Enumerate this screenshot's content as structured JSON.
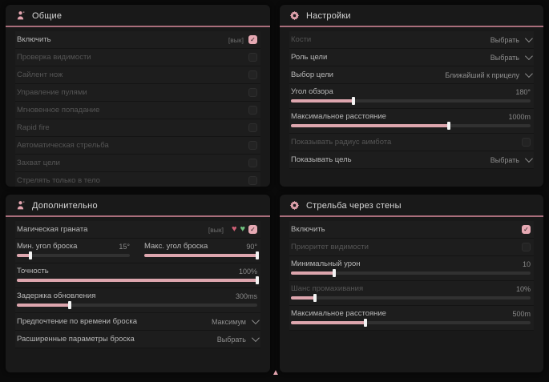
{
  "accent": {
    "pink": "#e3a4af",
    "underline": "#a96e7b",
    "slider_fill": "#dda6ae"
  },
  "panels": {
    "general": {
      "title": "Общие",
      "rows": [
        {
          "label": "Включить",
          "badge": "[вык]",
          "checked": true
        },
        {
          "label": "Проверка видимости",
          "checked": false
        },
        {
          "label": "Сайлент нож",
          "checked": false
        },
        {
          "label": "Управление пулями",
          "checked": false
        },
        {
          "label": "Мгновенное попадание",
          "checked": false
        },
        {
          "label": "Rapid fire",
          "checked": false
        },
        {
          "label": "Автоматическая стрельба",
          "checked": false
        },
        {
          "label": "Захват цели",
          "checked": false
        },
        {
          "label": "Стрелять только в тело",
          "checked": false
        }
      ]
    },
    "settings": {
      "title": "Настройки",
      "dropdowns": [
        {
          "label": "Кости",
          "value": "Выбрать"
        },
        {
          "label": "Роль цели",
          "value": "Выбрать"
        },
        {
          "label": "Выбор цели",
          "value": "Ближайший к прицелу"
        }
      ],
      "sliders": [
        {
          "label": "Угол обзора",
          "value": "180°",
          "percent": 26
        },
        {
          "label": "Максимальное расстояние",
          "value": "1000m",
          "percent": 66
        }
      ],
      "show_radius": {
        "label": "Показывать радиус аимбота",
        "checked": false
      },
      "show_target": {
        "label": "Показывать цель",
        "value": "Выбрать"
      }
    },
    "additional": {
      "title": "Дополнительно",
      "grenade": {
        "label": "Магическая граната",
        "badge": "[вык]",
        "checked": true,
        "red_icon": "♥",
        "green_icon": "♥"
      },
      "min_angle": {
        "label": "Мин. угол броска",
        "value": "15°",
        "percent": 12
      },
      "max_angle": {
        "label": "Макс. угол броска",
        "value": "90°",
        "percent": 100
      },
      "accuracy": {
        "label": "Точность",
        "value": "100%",
        "percent": 100
      },
      "delay": {
        "label": "Задержка обновления",
        "value": "300ms",
        "percent": 22
      },
      "throw_time": {
        "label": "Предпочтение по времени броска",
        "value": "Максимум"
      },
      "advanced": {
        "label": "Расширенные параметры броска",
        "value": "Выбрать"
      }
    },
    "walls": {
      "title": "Стрельба через стены",
      "enable": {
        "label": "Включить",
        "checked": true
      },
      "visibility": {
        "label": "Приоритет видимости",
        "checked": false
      },
      "sliders": [
        {
          "label": "Минимальный урон",
          "value": "10",
          "percent": 18
        },
        {
          "label": "Шанс промахивания",
          "value": "10%",
          "percent": 10
        },
        {
          "label": "Максимальное расстояние",
          "value": "500m",
          "percent": 31
        }
      ]
    }
  },
  "bottom_marker": "▲"
}
